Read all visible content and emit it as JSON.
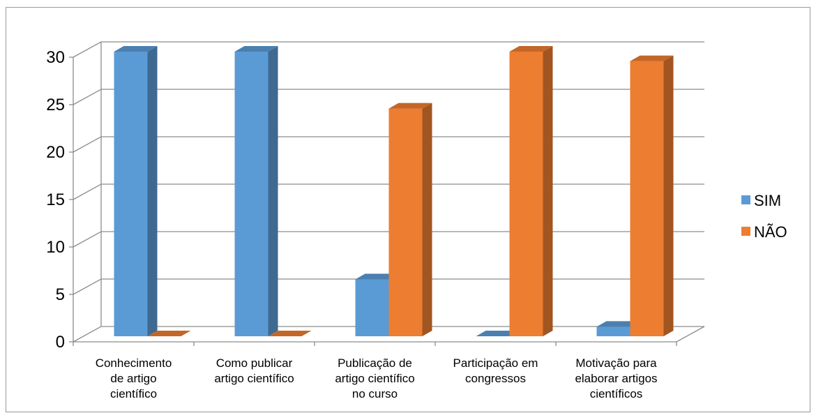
{
  "chart_data": {
    "type": "bar",
    "categories": [
      [
        "Conhecimento",
        "de artigo",
        "científico"
      ],
      [
        "Como publicar",
        "artigo científico"
      ],
      [
        "Publicação de",
        "artigo científico",
        "no curso"
      ],
      [
        "Participação em",
        "congressos"
      ],
      [
        "Motivação para",
        "elaborar artigos",
        "científicos"
      ]
    ],
    "series": [
      {
        "name": "SIM",
        "values": [
          30,
          30,
          6,
          0,
          1
        ],
        "color": "#5b9bd5"
      },
      {
        "name": "NÃO",
        "values": [
          0,
          0,
          24,
          30,
          29
        ],
        "color": "#ed7d31"
      }
    ],
    "yticks": [
      0,
      5,
      10,
      15,
      20,
      25,
      30
    ],
    "ylim": [
      0,
      30
    ],
    "grid": true,
    "legend_position": "right",
    "style": "3d-clustered-column"
  }
}
